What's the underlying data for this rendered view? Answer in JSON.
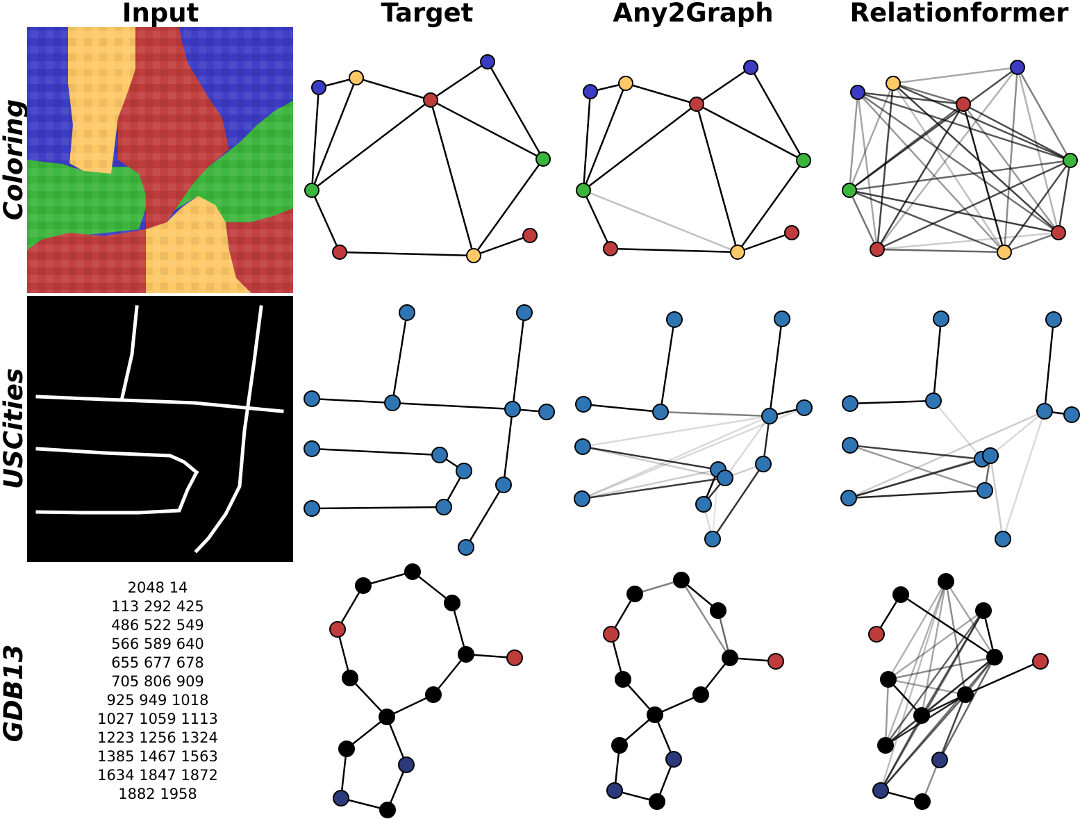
{
  "column_titles": [
    "Input",
    "Target",
    "Any2Graph",
    "Relationformer"
  ],
  "row_titles": [
    "Coloring",
    "USCities",
    "GDB13"
  ],
  "colors": {
    "blue": "#3b3bc4",
    "yellow": "#fdc866",
    "red": "#bf3c3c",
    "green": "#3bb53b",
    "city": "#2f75b3",
    "atom": "#000000",
    "navy": "#2c3a7c",
    "edge": "#000000"
  },
  "gdb13_input_lines": [
    "2048 14",
    "113 292 425",
    "486 522 549",
    "566 589 640",
    "655 677 678",
    "705 806 909",
    "925 949 1018",
    "1027 1059 1113",
    "1223 1256 1324",
    "1385 1467 1563",
    "1634 1847 1872",
    "1882 1958"
  ],
  "coloring_nodes": [
    {
      "id": "B1",
      "color": "blue"
    },
    {
      "id": "Y1",
      "color": "yellow"
    },
    {
      "id": "R1",
      "color": "red"
    },
    {
      "id": "B2",
      "color": "blue"
    },
    {
      "id": "G2",
      "color": "green"
    },
    {
      "id": "G1",
      "color": "green"
    },
    {
      "id": "R2",
      "color": "red"
    },
    {
      "id": "R3",
      "color": "red"
    },
    {
      "id": "Y2",
      "color": "yellow"
    }
  ],
  "coloring_target_edges": [
    [
      "B1",
      "Y1"
    ],
    [
      "B1",
      "G1"
    ],
    [
      "Y1",
      "G1"
    ],
    [
      "Y1",
      "R1"
    ],
    [
      "R1",
      "G1"
    ],
    [
      "R1",
      "B2"
    ],
    [
      "R1",
      "G2"
    ],
    [
      "R1",
      "Y2"
    ],
    [
      "B2",
      "G2"
    ],
    [
      "G2",
      "Y2"
    ],
    [
      "Y2",
      "R3"
    ],
    [
      "Y2",
      "R2"
    ],
    [
      "G1",
      "R2"
    ]
  ],
  "coloring_any2graph_edges": [
    [
      "B1",
      "Y1",
      1
    ],
    [
      "B1",
      "G1",
      1
    ],
    [
      "Y1",
      "G1",
      1
    ],
    [
      "Y1",
      "R1",
      1
    ],
    [
      "R1",
      "G1",
      1
    ],
    [
      "R1",
      "B2",
      1
    ],
    [
      "R1",
      "G2",
      1
    ],
    [
      "R1",
      "Y2",
      1
    ],
    [
      "B2",
      "G2",
      1
    ],
    [
      "G2",
      "Y2",
      1
    ],
    [
      "Y2",
      "R3",
      1
    ],
    [
      "Y2",
      "R2",
      1
    ],
    [
      "G1",
      "R2",
      1
    ],
    [
      "G1",
      "Y2",
      0.25
    ]
  ],
  "coloring_relationformer_edges": [
    [
      "B1",
      "R1",
      0.7
    ],
    [
      "B1",
      "G2",
      0.65
    ],
    [
      "B1",
      "R3",
      0.55
    ],
    [
      "B1",
      "Y2",
      0.4
    ],
    [
      "B1",
      "R2",
      0.35
    ],
    [
      "Y1",
      "R1",
      0.55
    ],
    [
      "Y1",
      "G2",
      0.7
    ],
    [
      "Y1",
      "R3",
      0.75
    ],
    [
      "Y1",
      "B2",
      0.35
    ],
    [
      "Y1",
      "Y2",
      0.25
    ],
    [
      "Y1",
      "G1",
      0.35
    ],
    [
      "Y1",
      "R2",
      0.6
    ],
    [
      "R1",
      "R2",
      0.75
    ],
    [
      "R1",
      "G1",
      0.65
    ],
    [
      "R1",
      "Y2",
      0.9
    ],
    [
      "R1",
      "G2",
      0.7
    ],
    [
      "B2",
      "G1",
      0.7
    ],
    [
      "B2",
      "R2",
      0.3
    ],
    [
      "B2",
      "Y2",
      0.45
    ],
    [
      "B2",
      "R3",
      0.3
    ],
    [
      "B2",
      "G2",
      0.5
    ],
    [
      "G2",
      "G1",
      0.6
    ],
    [
      "G2",
      "R2",
      0.7
    ],
    [
      "G2",
      "R3",
      0.75
    ],
    [
      "G2",
      "Y2",
      0.7
    ],
    [
      "G1",
      "R3",
      0.75
    ],
    [
      "G1",
      "Y2",
      0.65
    ],
    [
      "G1",
      "R2",
      0.55
    ],
    [
      "R2",
      "Y2",
      0.6
    ],
    [
      "R2",
      "R3",
      0.2
    ],
    [
      "R3",
      "Y2",
      0.55
    ],
    [
      "B1",
      "G1",
      0.4
    ],
    [
      "Y1",
      "R2",
      0.3
    ],
    [
      "R1",
      "R3",
      0.4
    ]
  ],
  "uscities_target_edges": [
    [
      "N1",
      "N2"
    ],
    [
      "N2",
      "N3"
    ],
    [
      "N2",
      "N8"
    ],
    [
      "N8",
      "N9"
    ],
    [
      "N8",
      "N4"
    ],
    [
      "N8",
      "N10"
    ],
    [
      "N10",
      "N14"
    ],
    [
      "N5",
      "N6"
    ],
    [
      "N6",
      "N7"
    ],
    [
      "N7",
      "N11"
    ],
    [
      "N11",
      "N12"
    ]
  ],
  "uscities_any2graph_edges": [
    [
      "N1",
      "N2",
      1
    ],
    [
      "N2",
      "N3",
      1
    ],
    [
      "N4",
      "N8",
      1
    ],
    [
      "N8",
      "N9",
      1
    ],
    [
      "N8",
      "N10",
      0.85
    ],
    [
      "N8",
      "N2",
      0.5
    ],
    [
      "N8",
      "N11",
      0.15
    ],
    [
      "N8",
      "N5",
      0.15
    ],
    [
      "N8",
      "N12",
      0.15
    ],
    [
      "N10",
      "N14",
      0.8
    ],
    [
      "N5",
      "N6",
      0.8
    ],
    [
      "N6",
      "N7",
      1
    ],
    [
      "N7",
      "N11",
      0.8
    ],
    [
      "N11",
      "N12",
      0.75
    ],
    [
      "N5",
      "N11",
      0.2
    ],
    [
      "N6",
      "N12",
      0.2
    ],
    [
      "N10",
      "N11",
      0.2
    ],
    [
      "N9",
      "N12",
      0.15
    ],
    [
      "N7",
      "N14",
      0.15
    ],
    [
      "N6",
      "N14",
      0.1
    ]
  ],
  "uscities_relationformer_edges": [
    [
      "N1",
      "N2",
      1
    ],
    [
      "N2",
      "N3",
      1
    ],
    [
      "N4",
      "N8",
      1
    ],
    [
      "N8",
      "N9",
      1
    ],
    [
      "N5",
      "N6",
      0.75
    ],
    [
      "N5",
      "N11",
      0.4
    ],
    [
      "N6",
      "N7",
      0.6
    ],
    [
      "N7",
      "N11",
      0.6
    ],
    [
      "N11",
      "N12",
      0.85
    ],
    [
      "N12",
      "N6",
      0.7
    ],
    [
      "N8",
      "N7",
      0.15
    ],
    [
      "N8",
      "N12",
      0.2
    ],
    [
      "N2",
      "N6",
      0.15
    ],
    [
      "N8",
      "N14",
      0.15
    ],
    [
      "N10",
      "N14",
      0.2
    ],
    [
      "N7",
      "N12",
      0.4
    ]
  ],
  "gdb13_nodes": [
    {
      "id": "A1",
      "color": "atom"
    },
    {
      "id": "A2",
      "color": "atom"
    },
    {
      "id": "A3",
      "color": "atom"
    },
    {
      "id": "O1",
      "color": "red"
    },
    {
      "id": "A4",
      "color": "atom"
    },
    {
      "id": "O2",
      "color": "red"
    },
    {
      "id": "A5",
      "color": "atom"
    },
    {
      "id": "A6",
      "color": "atom"
    },
    {
      "id": "A7",
      "color": "atom"
    },
    {
      "id": "A8",
      "color": "atom"
    },
    {
      "id": "N1",
      "color": "navy"
    },
    {
      "id": "A9",
      "color": "atom"
    },
    {
      "id": "N2",
      "color": "navy"
    },
    {
      "id": "A10",
      "color": "atom"
    }
  ],
  "gdb13_target_edges": [
    [
      "A1",
      "A2"
    ],
    [
      "A2",
      "A3"
    ],
    [
      "A3",
      "A4"
    ],
    [
      "A1",
      "O1"
    ],
    [
      "O1",
      "A5"
    ],
    [
      "A5",
      "A7"
    ],
    [
      "A4",
      "O2"
    ],
    [
      "A4",
      "A6"
    ],
    [
      "A6",
      "A7"
    ],
    [
      "A7",
      "A8"
    ],
    [
      "A7",
      "N1"
    ],
    [
      "A8",
      "N2"
    ],
    [
      "N2",
      "A10"
    ],
    [
      "N1",
      "A10"
    ]
  ],
  "gdb13_any2graph_edges": [
    [
      "A1",
      "A2",
      0.5
    ],
    [
      "A2",
      "A3",
      1
    ],
    [
      "A3",
      "A4",
      0.6
    ],
    [
      "A2",
      "A4",
      0.45
    ],
    [
      "A1",
      "O1",
      1
    ],
    [
      "O1",
      "A5",
      1
    ],
    [
      "A5",
      "A7",
      1
    ],
    [
      "A4",
      "O2",
      1
    ],
    [
      "A4",
      "A6",
      1
    ],
    [
      "A6",
      "A7",
      1
    ],
    [
      "A7",
      "A8",
      1
    ],
    [
      "A7",
      "N1",
      1
    ],
    [
      "A8",
      "N2",
      1
    ],
    [
      "N2",
      "A10",
      1
    ],
    [
      "N1",
      "A10",
      1
    ]
  ],
  "gdb13_relationformer_edges": [
    [
      "A1",
      "O1",
      1
    ],
    [
      "A1",
      "A4",
      1
    ],
    [
      "A2",
      "A5",
      0.3
    ],
    [
      "A2",
      "A7",
      0.35
    ],
    [
      "A2",
      "A8",
      0.3
    ],
    [
      "A2",
      "A6",
      0.45
    ],
    [
      "A2",
      "A4",
      0.35
    ],
    [
      "A2",
      "N2",
      0.25
    ],
    [
      "A3",
      "A4",
      1
    ],
    [
      "A3",
      "A7",
      0.6
    ],
    [
      "A3",
      "A8",
      0.6
    ],
    [
      "A3",
      "N2",
      0.55
    ],
    [
      "A3",
      "A5",
      0.35
    ],
    [
      "A4",
      "A5",
      0.45
    ],
    [
      "A4",
      "A7",
      0.65
    ],
    [
      "A4",
      "A8",
      0.55
    ],
    [
      "A4",
      "N1",
      0.6
    ],
    [
      "A4",
      "N2",
      0.55
    ],
    [
      "A4",
      "A6",
      0.5
    ],
    [
      "A5",
      "A6",
      0.35
    ],
    [
      "A5",
      "A7",
      1
    ],
    [
      "A5",
      "A8",
      0.4
    ],
    [
      "A6",
      "O2",
      1
    ],
    [
      "A6",
      "A7",
      0.9
    ],
    [
      "A6",
      "A8",
      0.85
    ],
    [
      "A6",
      "N2",
      0.6
    ],
    [
      "A6",
      "N1",
      0.5
    ],
    [
      "A6",
      "A10",
      0.45
    ],
    [
      "A7",
      "A8",
      0.5
    ],
    [
      "A7",
      "N2",
      0.6
    ],
    [
      "N2",
      "A10",
      1
    ]
  ]
}
